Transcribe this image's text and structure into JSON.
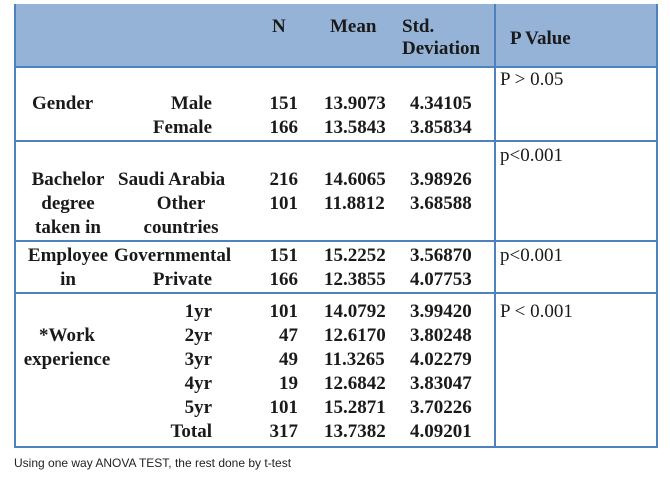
{
  "header": {
    "n": "N",
    "mean": "Mean",
    "std_line1": "Std.",
    "std_line2": "Deviation",
    "pvalue": "P Value"
  },
  "groups": {
    "gender": {
      "label": "Gender",
      "p": "P > 0.05",
      "rows": [
        {
          "cat": "Male",
          "n": "151",
          "mean": "13.9073",
          "sd": "4.34105"
        },
        {
          "cat": "Female",
          "n": "166",
          "mean": "13.5843",
          "sd": "3.85834"
        }
      ]
    },
    "bachelor": {
      "label_l1": "Bachelor",
      "label_l2": "degree",
      "label_l3": "taken in",
      "p": "p<0.001",
      "rows": [
        {
          "cat": "Saudi Arabia",
          "n": "216",
          "mean": "14.6065",
          "sd": "3.98926"
        },
        {
          "cat_l1": "Other",
          "cat_l2": "countries",
          "n": "101",
          "mean": "11.8812",
          "sd": "3.68588"
        }
      ]
    },
    "employee": {
      "label_l1": "Employee",
      "label_l2": "in",
      "p": "p<0.001",
      "rows": [
        {
          "cat": "Governmental",
          "n": "151",
          "mean": "15.2252",
          "sd": "3.56870"
        },
        {
          "cat": "Private",
          "n": "166",
          "mean": "12.3855",
          "sd": "4.07753"
        }
      ]
    },
    "work": {
      "label_l1": "*Work",
      "label_l2": "experience",
      "p": "P < 0.001",
      "rows": [
        {
          "cat": "1yr",
          "n": "101",
          "mean": "14.0792",
          "sd": "3.99420"
        },
        {
          "cat": "2yr",
          "n": "47",
          "mean": "12.6170",
          "sd": "3.80248"
        },
        {
          "cat": "3yr",
          "n": "49",
          "mean": "11.3265",
          "sd": "4.02279"
        },
        {
          "cat": "4yr",
          "n": "19",
          "mean": "12.6842",
          "sd": "3.83047"
        },
        {
          "cat": "5yr",
          "n": "101",
          "mean": "15.2871",
          "sd": "3.70226"
        },
        {
          "cat": "Total",
          "n": "317",
          "mean": "13.7382",
          "sd": "4.09201"
        }
      ]
    }
  },
  "footnote": "Using one way ANOVA TEST, the rest done by t-test"
}
